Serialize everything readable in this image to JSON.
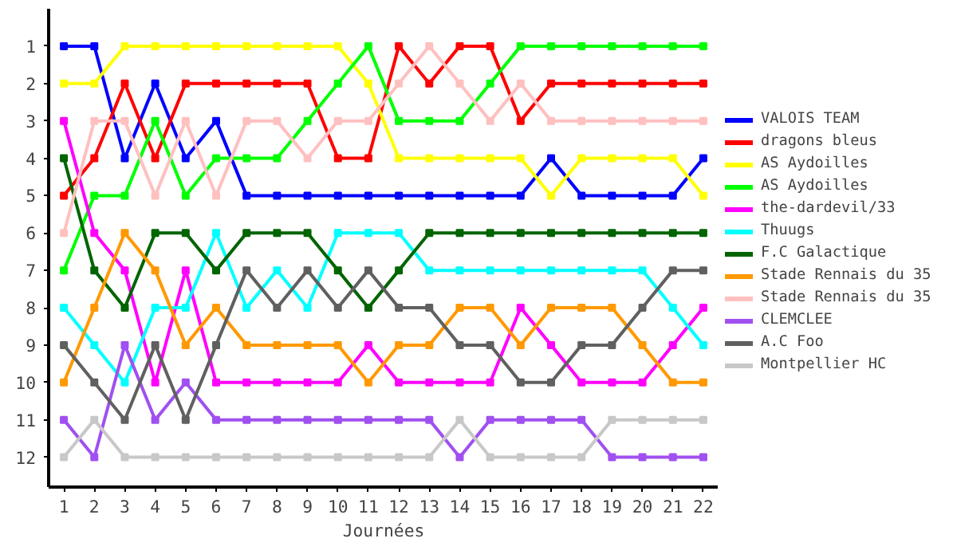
{
  "chart_data": {
    "type": "line",
    "xlabel": "Journées",
    "x": [
      1,
      2,
      3,
      4,
      5,
      6,
      7,
      8,
      9,
      10,
      11,
      12,
      13,
      14,
      15,
      16,
      17,
      18,
      19,
      20,
      21,
      22
    ],
    "xlim": [
      0.5,
      22.5
    ],
    "xticks": [
      1,
      2,
      3,
      4,
      5,
      6,
      7,
      8,
      9,
      10,
      11,
      12,
      13,
      14,
      15,
      16,
      17,
      18,
      19,
      20,
      21,
      22
    ],
    "ylim": [
      12.8,
      0
    ],
    "yticks": [
      1,
      2,
      3,
      4,
      5,
      6,
      7,
      8,
      9,
      10,
      11,
      12
    ],
    "grid": false,
    "legend": "right",
    "marker": "square",
    "line_style": "solid",
    "series": [
      {
        "name": "VALOIS TEAM",
        "color": "#0000ff",
        "values": [
          1,
          1,
          4,
          2,
          4,
          3,
          5,
          5,
          5,
          5,
          5,
          5,
          5,
          5,
          5,
          5,
          4,
          5,
          5,
          5,
          5,
          4
        ]
      },
      {
        "name": "dragons bleus",
        "color": "#ff0000",
        "values": [
          5,
          4,
          2,
          4,
          2,
          2,
          2,
          2,
          2,
          4,
          4,
          1,
          2,
          1,
          1,
          3,
          2,
          2,
          2,
          2,
          2,
          2
        ]
      },
      {
        "name": "AS Aydoilles",
        "color": "#ffff00",
        "values": [
          2,
          2,
          1,
          1,
          1,
          1,
          1,
          1,
          1,
          1,
          2,
          4,
          4,
          4,
          4,
          4,
          5,
          4,
          4,
          4,
          4,
          5
        ]
      },
      {
        "name": "AS Aydoilles",
        "color": "#00ff00",
        "values": [
          7,
          5,
          5,
          3,
          5,
          4,
          4,
          4,
          3,
          2,
          1,
          3,
          3,
          3,
          2,
          1,
          1,
          1,
          1,
          1,
          1,
          1
        ]
      },
      {
        "name": "the-dardevil/33",
        "color": "#ff00ff",
        "values": [
          3,
          6,
          7,
          10,
          7,
          10,
          10,
          10,
          10,
          10,
          9,
          10,
          10,
          10,
          10,
          8,
          9,
          10,
          10,
          10,
          9,
          8
        ]
      },
      {
        "name": "Thuugs",
        "color": "#00ffff",
        "values": [
          8,
          9,
          10,
          8,
          8,
          6,
          8,
          7,
          8,
          6,
          6,
          6,
          7,
          7,
          7,
          7,
          7,
          7,
          7,
          7,
          8,
          9
        ]
      },
      {
        "name": "F.C Galactique",
        "color": "#006400",
        "values": [
          4,
          7,
          8,
          6,
          6,
          7,
          6,
          6,
          6,
          7,
          8,
          7,
          6,
          6,
          6,
          6,
          6,
          6,
          6,
          6,
          6,
          6
        ]
      },
      {
        "name": "Stade Rennais du 35",
        "color": "#ff9900",
        "values": [
          10,
          8,
          6,
          7,
          9,
          8,
          9,
          9,
          9,
          9,
          10,
          9,
          9,
          8,
          8,
          9,
          8,
          8,
          8,
          9,
          10,
          10
        ]
      },
      {
        "name": "Stade Rennais du 35",
        "color": "#ffc0c0",
        "values": [
          6,
          3,
          3,
          5,
          3,
          5,
          3,
          3,
          4,
          3,
          3,
          2,
          1,
          2,
          3,
          2,
          3,
          3,
          3,
          3,
          3,
          3
        ]
      },
      {
        "name": "CLEMCLEE",
        "color": "#a050f0",
        "values": [
          11,
          12,
          9,
          11,
          10,
          11,
          11,
          11,
          11,
          11,
          11,
          11,
          11,
          12,
          11,
          11,
          11,
          11,
          12,
          12,
          12,
          12
        ]
      },
      {
        "name": "A.C Foo",
        "color": "#606060",
        "values": [
          9,
          10,
          11,
          9,
          11,
          9,
          7,
          8,
          7,
          8,
          7,
          8,
          8,
          9,
          9,
          10,
          10,
          9,
          9,
          8,
          7,
          7
        ]
      },
      {
        "name": "Montpellier HC",
        "color": "#c8c8c8",
        "values": [
          12,
          11,
          12,
          12,
          12,
          12,
          12,
          12,
          12,
          12,
          12,
          12,
          12,
          11,
          12,
          12,
          12,
          12,
          11,
          11,
          11,
          11
        ]
      }
    ]
  }
}
